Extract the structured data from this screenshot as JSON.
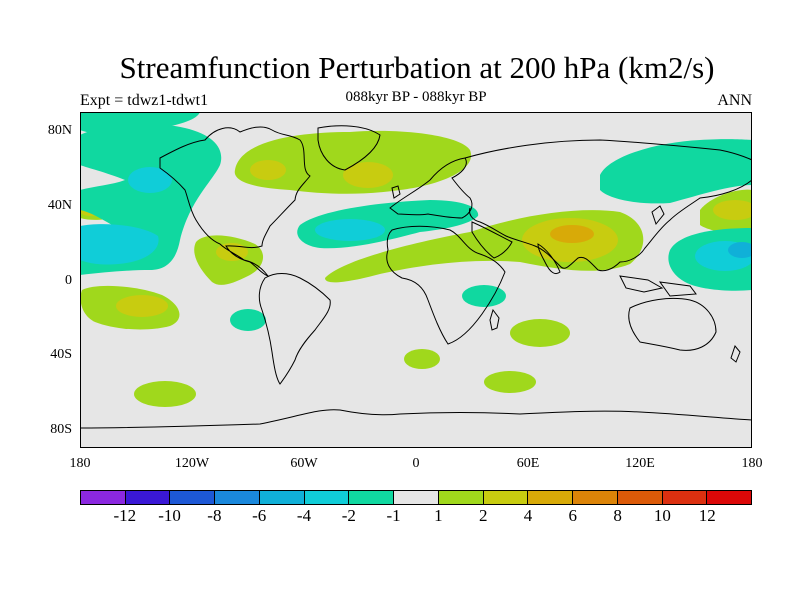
{
  "title": "Streamfunction Perturbation at 200 hPa (km2/s)",
  "subtitle": "088kyr BP - 088kyr BP",
  "left_label": "Expt = tdwz1-tdwt1",
  "right_label": "ANN",
  "map": {
    "projection": "cylindrical equidistant",
    "background_color": "#e6e6e6",
    "lat_labels": [
      "80N",
      "40N",
      "0",
      "40S",
      "80S"
    ],
    "lon_labels": [
      "180",
      "120W",
      "60W",
      "0",
      "60E",
      "120E",
      "180"
    ]
  },
  "colorbar": {
    "colors": [
      "#8b28e0",
      "#3a18d6",
      "#1d58d6",
      "#1a88dc",
      "#10b0d8",
      "#10cdd8",
      "#10d8a0",
      "#e6e6e6",
      "#a0d81c",
      "#c8cc10",
      "#d8aa08",
      "#dc8408",
      "#dc5a08",
      "#dc3010",
      "#dc0808"
    ],
    "labels": [
      "-12",
      "-10",
      "-8",
      "-6",
      "-4",
      "-2",
      "-1",
      "1",
      "2",
      "4",
      "6",
      "8",
      "10",
      "12"
    ]
  }
}
